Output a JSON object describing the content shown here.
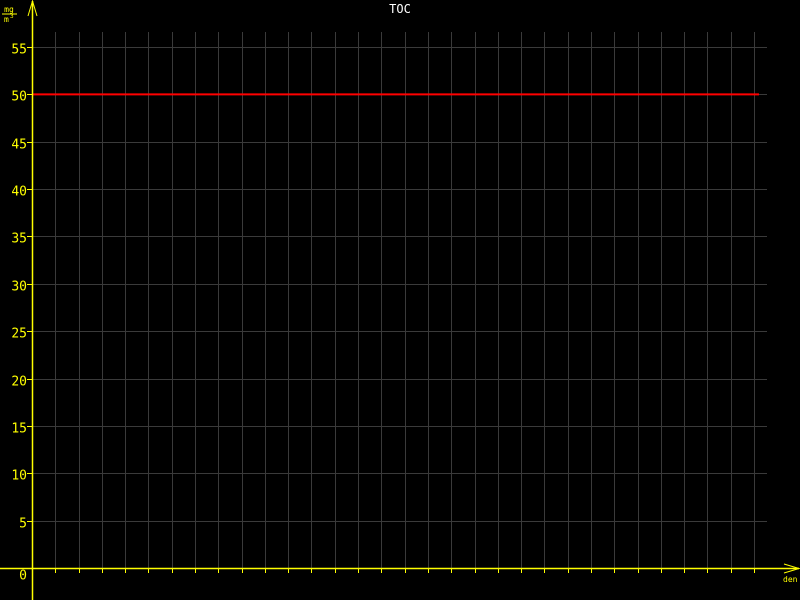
{
  "chart_data": {
    "type": "line",
    "title": "TOC",
    "xlabel": "den",
    "ylabel_numerator": "mg",
    "ylabel_denominator": "m",
    "ylabel_exponent": "3",
    "ylim": [
      0,
      55
    ],
    "yticks": [
      0,
      5,
      10,
      15,
      20,
      25,
      30,
      35,
      40,
      45,
      50,
      55
    ],
    "x_divisions": 31,
    "grid": true,
    "series": [
      {
        "color": "#ff0000",
        "x": [
          0,
          31
        ],
        "values": [
          50,
          50
        ]
      }
    ],
    "colors": {
      "background": "#000000",
      "axis": "#ffff00",
      "grid": "#3a3a3a",
      "title": "#ffffff"
    }
  }
}
